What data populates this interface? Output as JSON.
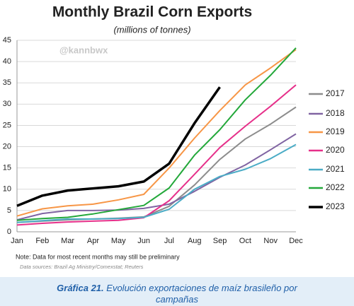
{
  "chart_data": {
    "type": "line",
    "title": "Monthly Brazil Corn Exports",
    "subtitle": "(millions  of tonnes)",
    "watermark": "@kannbwx",
    "note": "Note: Data for most recent months may still be preliminary",
    "source": "Data sources: Brazil Ag Ministry/Comexstat; Reuters",
    "categories": [
      "Jan",
      "Feb",
      "Mar",
      "Apr",
      "May",
      "Jun",
      "Jul",
      "Aug",
      "Sep",
      "Oct",
      "Nov",
      "Dec"
    ],
    "series": [
      {
        "name": "2017",
        "color": "#8c8c8c",
        "values": [
          2.2,
          2.5,
          2.8,
          3.0,
          3.2,
          3.5,
          6.0,
          11.0,
          17.0,
          21.8,
          25.3,
          29.3
        ]
      },
      {
        "name": "2018",
        "color": "#8064a2",
        "values": [
          2.8,
          4.3,
          5.0,
          5.0,
          5.1,
          5.5,
          6.5,
          9.5,
          12.8,
          15.7,
          19.3,
          23.0
        ]
      },
      {
        "name": "2019",
        "color": "#f79646",
        "values": [
          3.7,
          5.4,
          6.1,
          6.5,
          7.5,
          8.8,
          15.0,
          22.0,
          28.5,
          34.5,
          38.5,
          42.8
        ]
      },
      {
        "name": "2020",
        "color": "#e6308a",
        "values": [
          1.6,
          2.0,
          2.3,
          2.5,
          2.7,
          3.3,
          7.3,
          13.5,
          19.8,
          24.8,
          29.5,
          34.5
        ]
      },
      {
        "name": "2021",
        "color": "#4bacc6",
        "values": [
          2.2,
          2.6,
          3.0,
          3.0,
          3.1,
          3.4,
          5.3,
          10.0,
          13.0,
          14.7,
          17.2,
          20.5
        ]
      },
      {
        "name": "2022",
        "color": "#23a83a",
        "values": [
          2.7,
          3.1,
          3.4,
          4.2,
          5.2,
          6.2,
          10.3,
          18.0,
          24.0,
          31.0,
          36.8,
          43.2
        ]
      },
      {
        "name": "2023",
        "color": "#000000",
        "values": [
          6.1,
          8.5,
          9.7,
          10.2,
          10.7,
          11.8,
          16.0,
          25.5,
          34.0,
          null,
          null,
          null
        ]
      }
    ],
    "ylim": [
      0,
      45
    ],
    "yticks": [
      0,
      5,
      10,
      15,
      20,
      25,
      30,
      35,
      40,
      45
    ],
    "grid": true,
    "legend": "right"
  },
  "caption": {
    "label": "Gráfica 21.",
    "text": "Evolución exportaciones de maíz brasileño por campañas"
  }
}
